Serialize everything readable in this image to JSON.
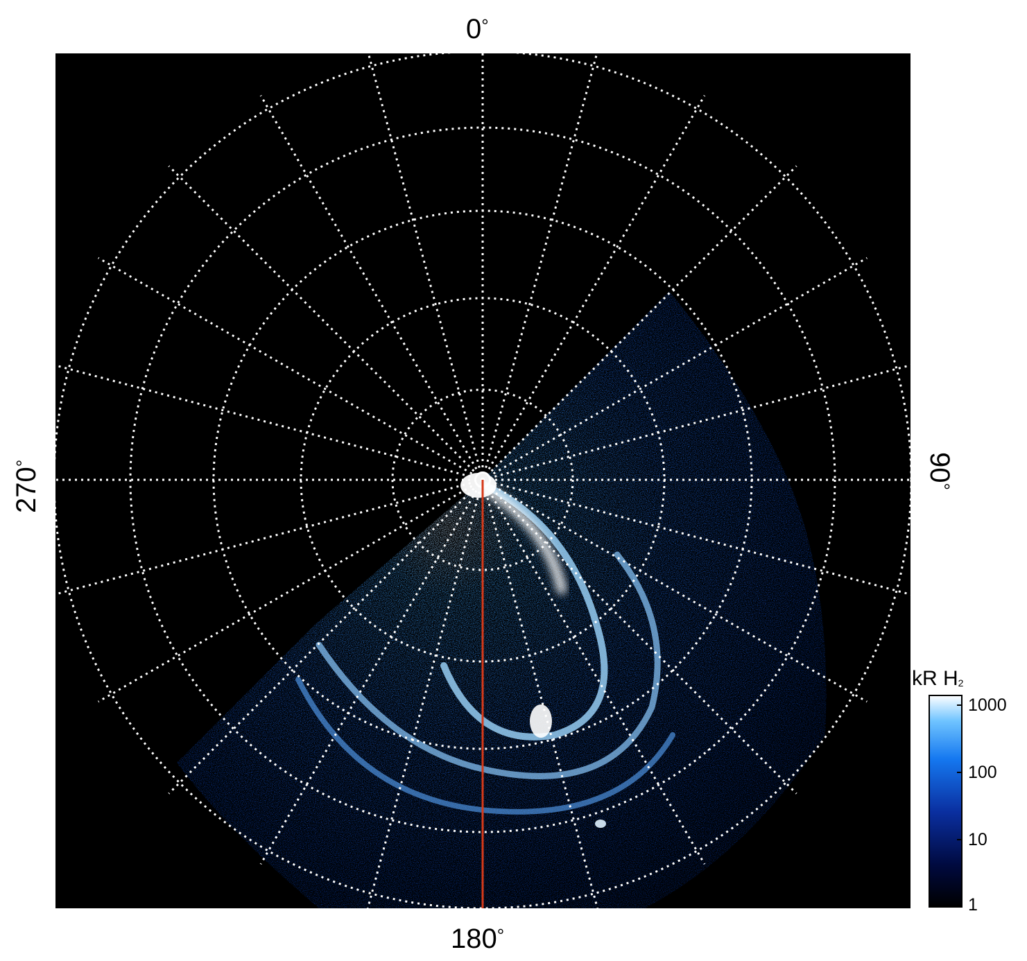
{
  "figure": {
    "longitude_labels": {
      "top": "0",
      "right": "90",
      "bottom": "180",
      "left": "270"
    },
    "degree_symbol": "°",
    "grid": {
      "style": "dotted",
      "color": "#ffffff",
      "rings": 5,
      "meridian_step_deg": 15
    },
    "background": "#000000",
    "reference_line": {
      "color": "#d63a1a",
      "meridian_deg": 180
    },
    "emission_colors": [
      "#00001a",
      "#001a7a",
      "#0a5be0",
      "#35a8ff",
      "#b8e4ff",
      "#ffffff"
    ]
  },
  "colorbar": {
    "title": "kR H",
    "title_subscript": "2",
    "ticks": [
      "1000",
      "100",
      "10",
      "1"
    ],
    "scale": "log"
  }
}
